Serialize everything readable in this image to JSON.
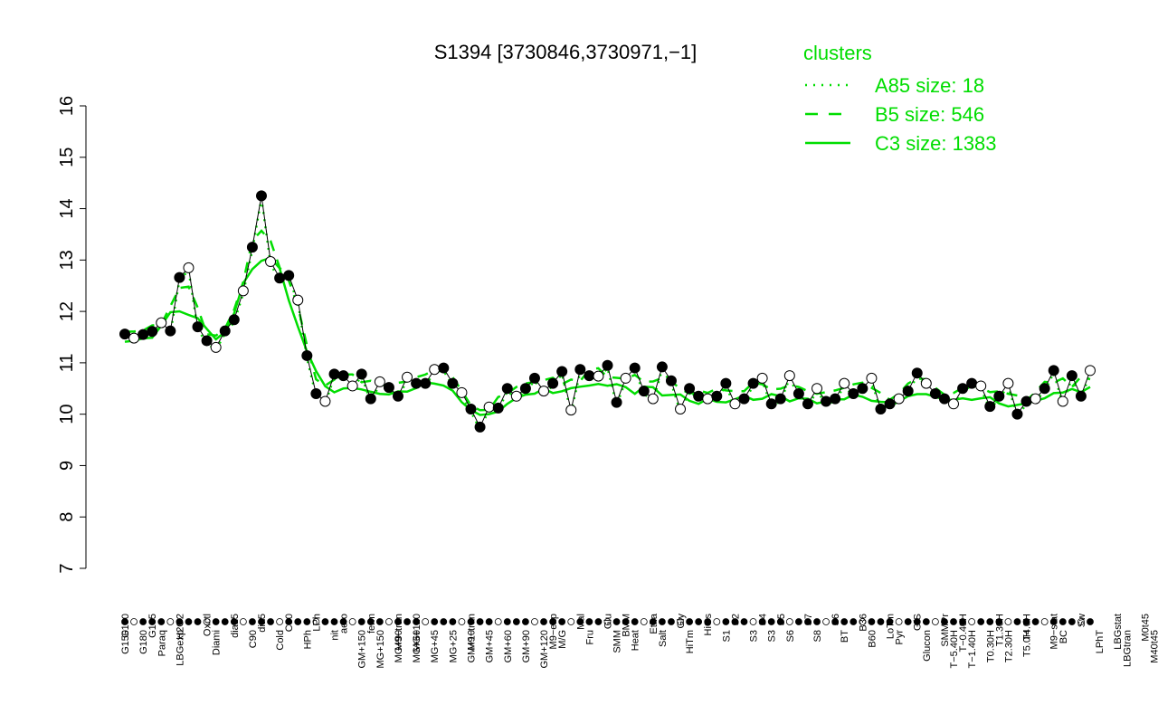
{
  "chart_data": {
    "type": "line",
    "title": "S1394 [3730846,3730971,−1]",
    "xlabel": "",
    "ylabel": "",
    "ylim": [
      7,
      16
    ],
    "yticks": [
      7,
      8,
      9,
      10,
      11,
      12,
      13,
      14,
      15,
      16
    ],
    "grid": false,
    "legend_position": "top-right",
    "legend": {
      "title": "clusters",
      "entries": [
        {
          "label": "A85 size: 18",
          "style": "dotted"
        },
        {
          "label": "B5 size: 546",
          "style": "dashed"
        },
        {
          "label": "C3 size: 1383",
          "style": "solid"
        }
      ]
    },
    "colors": {
      "cluster_line": "#00dd00",
      "points_dark": "#000000",
      "points_light": "#ffffff"
    },
    "xticks_top": [
      {
        "i": 0,
        "label": "G150"
      },
      {
        "i": 3,
        "label": "G135"
      },
      {
        "i": 6,
        "label": "H2O2"
      },
      {
        "i": 9,
        "label": "Oxctl"
      },
      {
        "i": 12,
        "label": "dia15"
      },
      {
        "i": 15,
        "label": "dia5"
      },
      {
        "i": 18,
        "label": "C30"
      },
      {
        "i": 21,
        "label": "LPh"
      },
      {
        "i": 24,
        "label": "aero"
      },
      {
        "i": 27,
        "label": "ferm"
      },
      {
        "i": 30,
        "label": "M9−tran"
      },
      {
        "i": 32,
        "label": "MG+120"
      },
      {
        "i": 38,
        "label": "M9−tran"
      },
      {
        "i": 47,
        "label": "M9−exp"
      },
      {
        "i": 50,
        "label": "Mal"
      },
      {
        "i": 53,
        "label": "Glu"
      },
      {
        "i": 55,
        "label": "BMM"
      },
      {
        "i": 58,
        "label": "Etha"
      },
      {
        "i": 61,
        "label": "Gly"
      },
      {
        "i": 64,
        "label": "HiOs"
      },
      {
        "i": 67,
        "label": "S2"
      },
      {
        "i": 70,
        "label": "S4"
      },
      {
        "i": 72,
        "label": "S5"
      },
      {
        "i": 75,
        "label": "S7"
      },
      {
        "i": 78,
        "label": "S6"
      },
      {
        "i": 81,
        "label": "B36"
      },
      {
        "i": 84,
        "label": "LoTm"
      },
      {
        "i": 87,
        "label": "G/S"
      },
      {
        "i": 90,
        "label": "SMMPr"
      },
      {
        "i": 92,
        "label": "T−0.40H"
      },
      {
        "i": 96,
        "label": "T1.30H"
      },
      {
        "i": 99,
        "label": "T4.0H"
      },
      {
        "i": 102,
        "label": "M9−stat"
      },
      {
        "i": 105,
        "label": "Sw"
      },
      {
        "i": 109,
        "label": "LBGstat"
      },
      {
        "i": 112,
        "label": "M0t45"
      },
      {
        "i": 115,
        "label": "M40t45"
      },
      {
        "i": 118,
        "label": "M0t90"
      },
      {
        "i": 121,
        "label": "BI"
      },
      {
        "i": 124,
        "label": "M0t45"
      },
      {
        "i": 126,
        "label": "M0"
      },
      {
        "i": 127,
        "label": "Lbexp"
      }
    ],
    "xticks_bottom": [
      {
        "i": 0,
        "label": "G150"
      },
      {
        "i": 2,
        "label": "G180"
      },
      {
        "i": 4,
        "label": "Paraq"
      },
      {
        "i": 6,
        "label": "LBGexp"
      },
      {
        "i": 10,
        "label": "Diami"
      },
      {
        "i": 14,
        "label": "C90"
      },
      {
        "i": 17,
        "label": "Cold"
      },
      {
        "i": 20,
        "label": "HPh"
      },
      {
        "i": 23,
        "label": "nit"
      },
      {
        "i": 26,
        "label": "GM+150"
      },
      {
        "i": 28,
        "label": "MG+150"
      },
      {
        "i": 30,
        "label": "MG+90"
      },
      {
        "i": 32,
        "label": "MG+60"
      },
      {
        "i": 34,
        "label": "MG+45"
      },
      {
        "i": 36,
        "label": "MG+25"
      },
      {
        "i": 38,
        "label": "GM+10"
      },
      {
        "i": 40,
        "label": "GM+45"
      },
      {
        "i": 42,
        "label": "GM+60"
      },
      {
        "i": 44,
        "label": "GM+90"
      },
      {
        "i": 46,
        "label": "GM+120"
      },
      {
        "i": 48,
        "label": "M/G"
      },
      {
        "i": 51,
        "label": "Fru"
      },
      {
        "i": 54,
        "label": "SMM"
      },
      {
        "i": 56,
        "label": "Heat"
      },
      {
        "i": 59,
        "label": "Salt"
      },
      {
        "i": 62,
        "label": "HiTm"
      },
      {
        "i": 66,
        "label": "S1"
      },
      {
        "i": 69,
        "label": "S3"
      },
      {
        "i": 71,
        "label": "S3"
      },
      {
        "i": 73,
        "label": "S6"
      },
      {
        "i": 76,
        "label": "S8"
      },
      {
        "i": 79,
        "label": "BT"
      },
      {
        "i": 82,
        "label": "B60"
      },
      {
        "i": 85,
        "label": "Pyr"
      },
      {
        "i": 88,
        "label": "Glucon"
      },
      {
        "i": 91,
        "label": "T−5.40H"
      },
      {
        "i": 93,
        "label": "T−1.40H"
      },
      {
        "i": 95,
        "label": "T0.30H"
      },
      {
        "i": 97,
        "label": "T2.30H"
      },
      {
        "i": 99,
        "label": "T5.0H"
      },
      {
        "i": 103,
        "label": "BC"
      },
      {
        "i": 107,
        "label": "LPhT"
      },
      {
        "i": 110,
        "label": "LBGtran"
      },
      {
        "i": 113,
        "label": "M40t45"
      },
      {
        "i": 114,
        "label": "Lbtran"
      },
      {
        "i": 116,
        "label": "Mt0"
      },
      {
        "i": 117,
        "label": "M40t90"
      },
      {
        "i": 119,
        "label": "Lbstat"
      },
      {
        "i": 122,
        "label": "S0"
      },
      {
        "i": 125,
        "label": "dia0"
      },
      {
        "i": 126,
        "label": "Mt0"
      },
      {
        "i": 127,
        "label": "Lbexp"
      }
    ],
    "series": [
      {
        "values": [
          11.56,
          11.48,
          11.55,
          11.61,
          11.78,
          11.62,
          12.66,
          12.85,
          11.7,
          11.43,
          11.3,
          11.62,
          11.84,
          12.4,
          13.25,
          14.25,
          12.97,
          12.65,
          12.7,
          12.22,
          11.14,
          10.4,
          10.25,
          10.78,
          10.75,
          10.55,
          10.78,
          10.3,
          10.63,
          10.52,
          10.35,
          10.72,
          10.6,
          10.6,
          10.87,
          10.9,
          10.6,
          10.42,
          10.1,
          9.75,
          10.14,
          10.12,
          10.5,
          10.35,
          10.5,
          10.7,
          10.45,
          10.6,
          10.83,
          10.08,
          10.87,
          10.75,
          10.74,
          10.95,
          10.23,
          10.7,
          10.9,
          10.45,
          10.3,
          10.92,
          10.65,
          10.1,
          10.5,
          10.35,
          10.3,
          10.35,
          10.6,
          10.2,
          10.3,
          10.6,
          10.7,
          10.2,
          10.3,
          10.75,
          10.4,
          10.2,
          10.5,
          10.25,
          10.3,
          10.6,
          10.4,
          10.5,
          10.7,
          10.1,
          10.2,
          10.3,
          10.45,
          10.8,
          10.6,
          10.4,
          10.3,
          10.2,
          10.5,
          10.6,
          10.55,
          10.15,
          10.35,
          10.6,
          10.0,
          10.25,
          10.3,
          10.5,
          10.85,
          10.25,
          10.75,
          10.35,
          10.85
        ]
      }
    ]
  }
}
